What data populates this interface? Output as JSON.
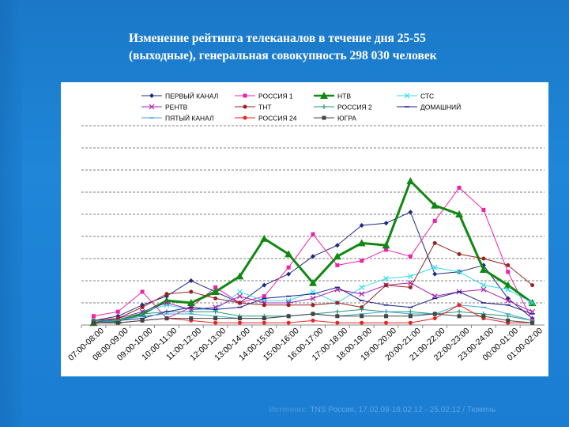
{
  "title": {
    "line1": "Изменение рейтинга телеканалов в течение дня 25-55",
    "line2": "(выходные), генеральная совокупность 298 030 человек"
  },
  "source": {
    "label": "Источник:",
    "text": "TNS Россия, 17.02.08-19.02.12 - 25.02.12 / Тюмень"
  },
  "colors": {
    "background": "#1f86d8",
    "panel": "#ffffff",
    "gridline": "#000000"
  },
  "chart_data": {
    "type": "line",
    "title": "",
    "xlabel": "",
    "ylabel": "",
    "ylim": [
      0,
      9
    ],
    "grid": true,
    "legend_position": "top",
    "categories": [
      "07:00-08:00",
      "08:00-09:00",
      "09:00-10:00",
      "10:00-11:00",
      "11:00-12:00",
      "12:00-13:00",
      "13:00-14:00",
      "14:00-15:00",
      "15:00-16:00",
      "16:00-17:00",
      "17:00-18:00",
      "18:00-19:00",
      "19:00-20:00",
      "20:00-21:00",
      "21:00-22:00",
      "22:00-23:00",
      "23:00-24:00",
      "00:00-01:00",
      "01:00-02:00"
    ],
    "series": [
      {
        "name": "ПЕРВЫЙ КАНАЛ",
        "color": "#1f2a80",
        "marker": "diamond",
        "values": [
          0.2,
          0.4,
          0.9,
          1.3,
          2.0,
          1.5,
          1.0,
          1.8,
          2.3,
          3.1,
          3.6,
          4.5,
          4.6,
          5.1,
          2.3,
          2.4,
          2.7,
          1.2,
          0.3
        ]
      },
      {
        "name": "РОССИЯ 1",
        "color": "#ee22aa",
        "marker": "square",
        "values": [
          0.4,
          0.6,
          1.5,
          0.3,
          0.8,
          1.7,
          1.0,
          1.3,
          2.6,
          4.1,
          2.7,
          2.9,
          3.4,
          3.1,
          4.7,
          6.2,
          5.2,
          2.4,
          0.2
        ]
      },
      {
        "name": "НТВ",
        "color": "#118811",
        "marker": "triangle",
        "bold": true,
        "values": [
          0.1,
          0.2,
          0.5,
          1.1,
          1.0,
          1.5,
          2.2,
          3.9,
          3.2,
          1.9,
          3.1,
          3.7,
          3.6,
          6.5,
          5.4,
          5.0,
          2.5,
          1.8,
          1.0
        ]
      },
      {
        "name": "СТС",
        "color": "#33ddee",
        "marker": "x",
        "values": [
          0.2,
          0.3,
          0.6,
          0.9,
          0.7,
          0.7,
          1.5,
          1.1,
          1.1,
          1.5,
          1.0,
          1.7,
          2.1,
          2.2,
          2.6,
          2.4,
          1.8,
          1.6,
          1.0
        ]
      },
      {
        "name": "РЕНТВ",
        "color": "#aa22aa",
        "marker": "x",
        "values": [
          0.1,
          0.3,
          0.6,
          1.0,
          0.7,
          0.8,
          1.3,
          1.0,
          1.0,
          1.2,
          1.6,
          1.4,
          1.8,
          1.9,
          1.3,
          1.5,
          1.6,
          1.1,
          0.6
        ]
      },
      {
        "name": "ТНТ",
        "color": "#992222",
        "marker": "circle",
        "values": [
          0.2,
          0.3,
          0.8,
          1.4,
          1.5,
          1.2,
          1.0,
          0.9,
          0.9,
          0.9,
          1.0,
          0.8,
          1.8,
          1.7,
          3.7,
          3.2,
          3.0,
          2.7,
          1.8
        ]
      },
      {
        "name": "РОССИЯ 2",
        "color": "#229977",
        "marker": "plus",
        "values": [
          0.2,
          0.2,
          0.5,
          0.6,
          0.6,
          0.6,
          0.4,
          0.4,
          0.4,
          0.5,
          0.6,
          0.7,
          0.6,
          0.6,
          0.5,
          0.6,
          0.5,
          0.4,
          0.2
        ]
      },
      {
        "name": "ДОМАШНИЙ",
        "color": "#222288",
        "marker": "dash",
        "values": [
          0.1,
          0.2,
          0.3,
          0.6,
          0.8,
          0.7,
          0.8,
          1.2,
          1.3,
          1.4,
          1.7,
          1.1,
          0.9,
          0.8,
          1.2,
          1.5,
          1.0,
          0.9,
          0.5
        ]
      },
      {
        "name": "ПЯТЫЙ КАНАЛ",
        "color": "#44aadd",
        "marker": "dash",
        "values": [
          0.1,
          0.2,
          0.4,
          0.5,
          0.5,
          0.4,
          0.3,
          0.3,
          0.4,
          0.5,
          0.4,
          0.5,
          0.6,
          0.5,
          0.5,
          0.9,
          0.8,
          0.5,
          0.2
        ]
      },
      {
        "name": "РОССИЯ 24",
        "color": "#ee2222",
        "marker": "circle",
        "values": [
          0.1,
          0.1,
          0.2,
          0.3,
          0.2,
          0.1,
          0.1,
          0.1,
          0.1,
          0.2,
          0.1,
          0.1,
          0.1,
          0.1,
          0.3,
          0.9,
          0.3,
          0.1,
          0.1
        ]
      },
      {
        "name": "ЮГРА",
        "color": "#444444",
        "marker": "square",
        "values": [
          0.1,
          0.1,
          0.2,
          0.3,
          0.3,
          0.3,
          0.3,
          0.3,
          0.4,
          0.5,
          0.4,
          0.4,
          0.4,
          0.4,
          0.5,
          0.4,
          0.4,
          0.2,
          0.1
        ]
      }
    ]
  }
}
